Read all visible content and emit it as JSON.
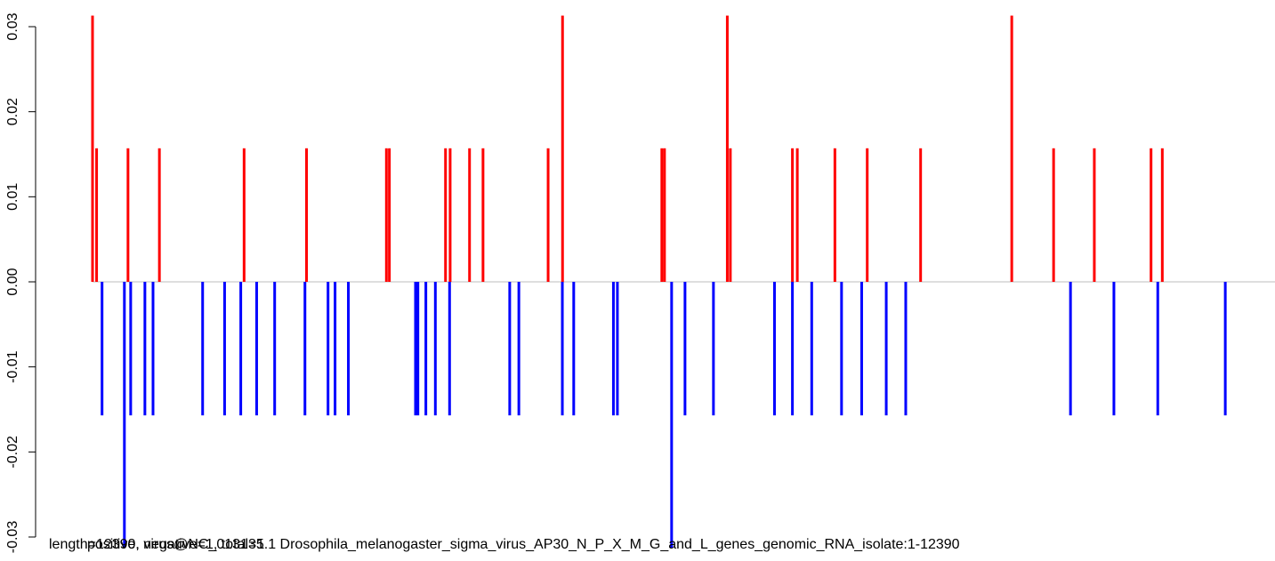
{
  "chart_data": {
    "type": "bar",
    "title": "",
    "xlabel": "",
    "ylabel": "",
    "ylim": [
      -0.03,
      0.03
    ],
    "xlim": [
      1,
      12390
    ],
    "y_ticks": [
      "-0.03",
      "-0.02",
      "-0.01",
      "0.00",
      "0.01",
      "0.02",
      "0.03"
    ],
    "y_tick_values": [
      -0.03,
      -0.02,
      -0.01,
      0.0,
      0.01,
      0.02,
      0.03
    ],
    "bottom_labels": {
      "text_a": "length=12390, virus@NC_013135.1 Drosophila_melanogaster_sigma_virus_AP30_N_P_X_M_G_and_L_genes_genomic_RNA_isolate:1-12390",
      "text_b": "positive, negative=1, total=1"
    },
    "colors": {
      "positive": "#ff0000",
      "negative": "#0000ff",
      "baseline": "#bebebe"
    },
    "series": [
      {
        "name": "positive",
        "x": [
          1,
          45,
          385,
          725,
          1642,
          2318,
          3183,
          3215,
          3823,
          3873,
          4083,
          4229,
          4934,
          5090,
          6165,
          6194,
          6874,
          6907,
          7579,
          7632,
          8039,
          8389,
          8967,
          9954,
          10407,
          10848,
          11462,
          11584
        ],
        "values": [
          0.0313,
          0.0157,
          0.0157,
          0.0157,
          0.0157,
          0.0157,
          0.0157,
          0.0157,
          0.0157,
          0.0157,
          0.0157,
          0.0157,
          0.0157,
          0.0313,
          0.0157,
          0.0157,
          0.0313,
          0.0157,
          0.0157,
          0.0157,
          0.0157,
          0.0157,
          0.0157,
          0.0313,
          0.0157,
          0.0157,
          0.0157,
          0.0157
        ]
      },
      {
        "name": "negative",
        "x": [
          104,
          346,
          414,
          568,
          656,
          1193,
          1431,
          1606,
          1778,
          1973,
          2301,
          2551,
          2627,
          2771,
          3498,
          3524,
          3610,
          3713,
          3867,
          4518,
          4617,
          5088,
          5211,
          5641,
          5684,
          6271,
          6416,
          6724,
          7385,
          7579,
          7788,
          8111,
          8329,
          8595,
          8806,
          10590,
          11060,
          11535,
          12266
        ],
        "values": [
          -0.0157,
          -0.0313,
          -0.0157,
          -0.0157,
          -0.0157,
          -0.0157,
          -0.0157,
          -0.0157,
          -0.0157,
          -0.0157,
          -0.0157,
          -0.0157,
          -0.0157,
          -0.0157,
          -0.0157,
          -0.0157,
          -0.0157,
          -0.0157,
          -0.0157,
          -0.0157,
          -0.0157,
          -0.0157,
          -0.0157,
          -0.0157,
          -0.0157,
          -0.0313,
          -0.0157,
          -0.0157,
          -0.0157,
          -0.0157,
          -0.0157,
          -0.0157,
          -0.0157,
          -0.0157,
          -0.0157,
          -0.0157,
          -0.0157,
          -0.0157,
          -0.0157
        ]
      }
    ]
  }
}
